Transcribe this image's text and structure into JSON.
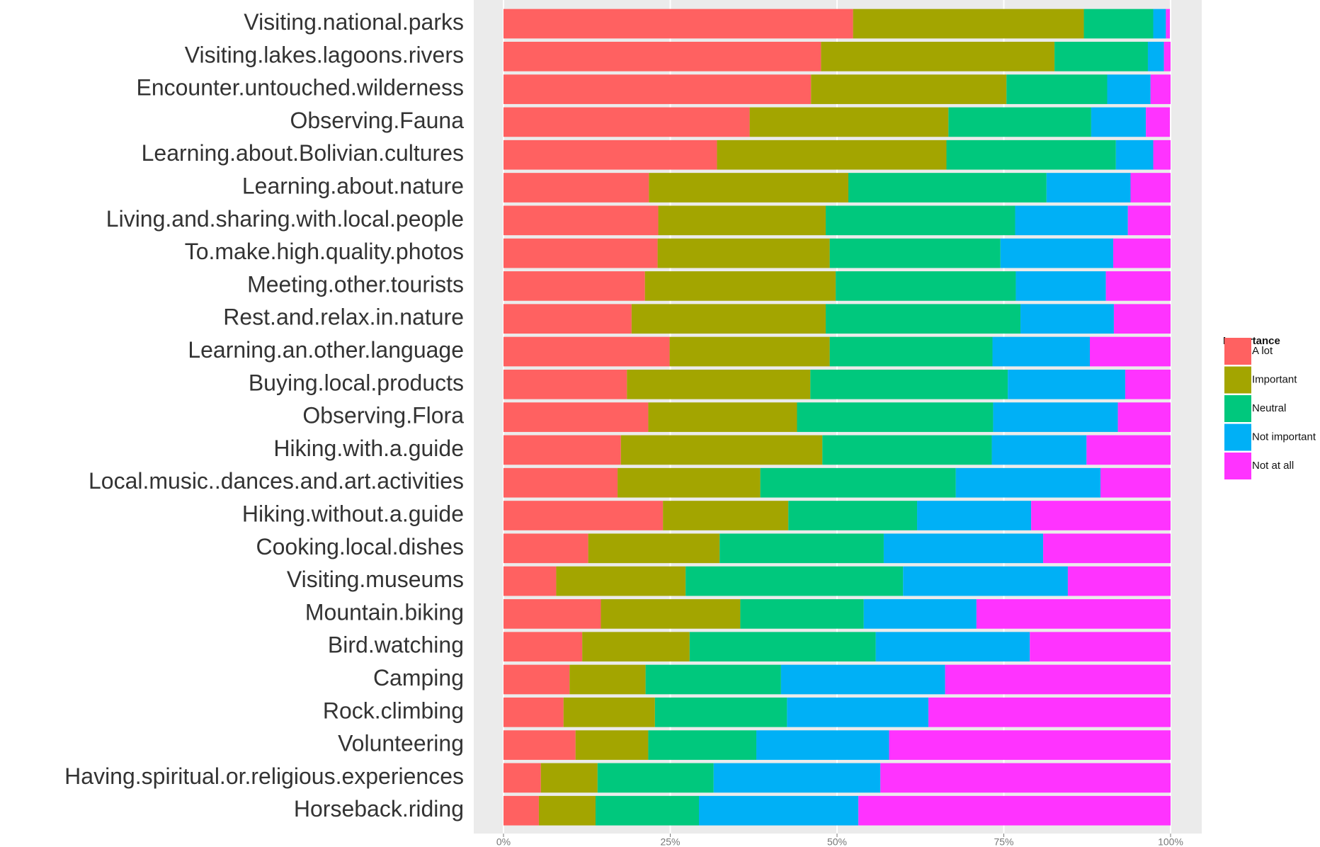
{
  "chart_data": {
    "type": "stacked_barh",
    "categories": [
      "Visiting.national.parks",
      "Visiting.lakes.lagoons.rivers",
      "Encounter.untouched.wilderness",
      "Observing.Fauna",
      "Learning.about.Bolivian.cultures",
      "Learning.about.nature",
      "Living.and.sharing.with.local.people",
      "To.make.high.quality.photos",
      "Meeting.other.tourists",
      "Rest.and.relax.in.nature",
      "Learning.an.other.language",
      "Buying.local.products",
      "Observing.Flora",
      "Hiking.with.a.guide",
      "Local.music..dances.and.art.activities",
      "Hiking.without.a.guide",
      "Cooking.local.dishes",
      "Visiting.museums",
      "Mountain.biking",
      "Bird.watching",
      "Camping",
      "Rock.climbing",
      "Volunteering",
      "Having.spiritual.or.religious.experiences",
      "Horseback.riding"
    ],
    "series": [
      {
        "name": "A lot",
        "color": "#FF6161",
        "values": [
          52.4,
          47.6,
          46.1,
          36.9,
          32.0,
          21.8,
          23.2,
          23.1,
          21.2,
          19.2,
          24.9,
          18.5,
          21.7,
          17.6,
          17.1,
          23.9,
          12.7,
          7.9,
          14.6,
          11.8,
          9.9,
          9.0,
          10.8,
          5.6,
          5.3
        ]
      },
      {
        "name": "Important",
        "color": "#A3A500",
        "values": [
          34.6,
          35.0,
          29.3,
          29.8,
          34.4,
          29.9,
          25.1,
          25.8,
          28.6,
          29.1,
          24.0,
          27.5,
          22.3,
          30.2,
          21.4,
          18.8,
          19.7,
          19.4,
          20.9,
          16.1,
          11.4,
          13.7,
          10.9,
          8.5,
          8.5
        ]
      },
      {
        "name": "Neutral",
        "color": "#00C87D",
        "values": [
          10.4,
          14.0,
          15.1,
          21.4,
          25.4,
          29.7,
          28.4,
          25.6,
          27.0,
          29.2,
          24.4,
          29.6,
          29.4,
          25.4,
          29.3,
          19.3,
          24.6,
          32.6,
          18.5,
          27.9,
          20.3,
          19.8,
          16.2,
          17.4,
          15.5
        ]
      },
      {
        "name": "Not important",
        "color": "#00B0F6",
        "values": [
          1.9,
          2.4,
          6.5,
          8.2,
          5.6,
          12.6,
          16.9,
          16.9,
          13.5,
          14.0,
          14.6,
          17.6,
          18.7,
          14.2,
          21.7,
          17.1,
          23.9,
          24.7,
          16.9,
          23.1,
          24.6,
          21.2,
          19.9,
          25.0,
          23.9
        ]
      },
      {
        "name": "Not at all",
        "color": "#FF33FF",
        "values": [
          0.6,
          1.0,
          3.0,
          3.6,
          2.6,
          6.0,
          6.4,
          8.6,
          9.7,
          8.5,
          12.1,
          6.8,
          7.9,
          12.6,
          10.5,
          20.9,
          19.1,
          15.4,
          29.1,
          21.1,
          33.8,
          36.3,
          42.2,
          43.5,
          46.8
        ]
      }
    ],
    "xlim": [
      0,
      100
    ],
    "xticks": [
      {
        "value": 0,
        "label": "0%"
      },
      {
        "value": 25,
        "label": "25%"
      },
      {
        "value": 50,
        "label": "50%"
      },
      {
        "value": 75,
        "label": "75%"
      },
      {
        "value": 100,
        "label": "100%"
      }
    ],
    "legend_title": "Importance",
    "legend_position": "right",
    "grid": true
  }
}
